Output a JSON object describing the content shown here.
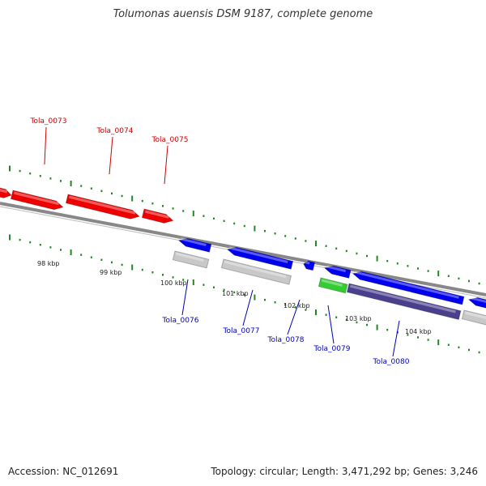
{
  "header": {
    "title": "Tolumonas auensis DSM 9187, complete genome"
  },
  "footer": {
    "accession": "Accession: NC_012691",
    "summary": "Topology: circular; Length: 3,471,292 bp; Genes: 3,246"
  },
  "colors": {
    "forward_gene": "#ee0000",
    "reverse_gene": "#0000ee",
    "rna_gene": "#33cc33",
    "subtrack_gray": "#c8c8c8",
    "subtrack_purple": "#4a3f8c",
    "tick": "#228822",
    "backbone": "#888888",
    "forward_label": "#cc0000",
    "reverse_label": "#0000bb"
  },
  "scale_labels": [
    "98 kbp",
    "99 kbp",
    "100 kbp",
    "101 kbp",
    "102 kbp",
    "103 kbp",
    "104 kbp"
  ],
  "forward_genes": [
    {
      "label": "Tola_0073"
    },
    {
      "label": "Tola_0074"
    },
    {
      "label": "Tola_0075"
    }
  ],
  "reverse_genes": [
    {
      "label": "Tola_0076"
    },
    {
      "label": "Tola_0077"
    },
    {
      "label": "Tola_0078"
    },
    {
      "label": "Tola_0079"
    },
    {
      "label": "Tola_0080"
    }
  ]
}
